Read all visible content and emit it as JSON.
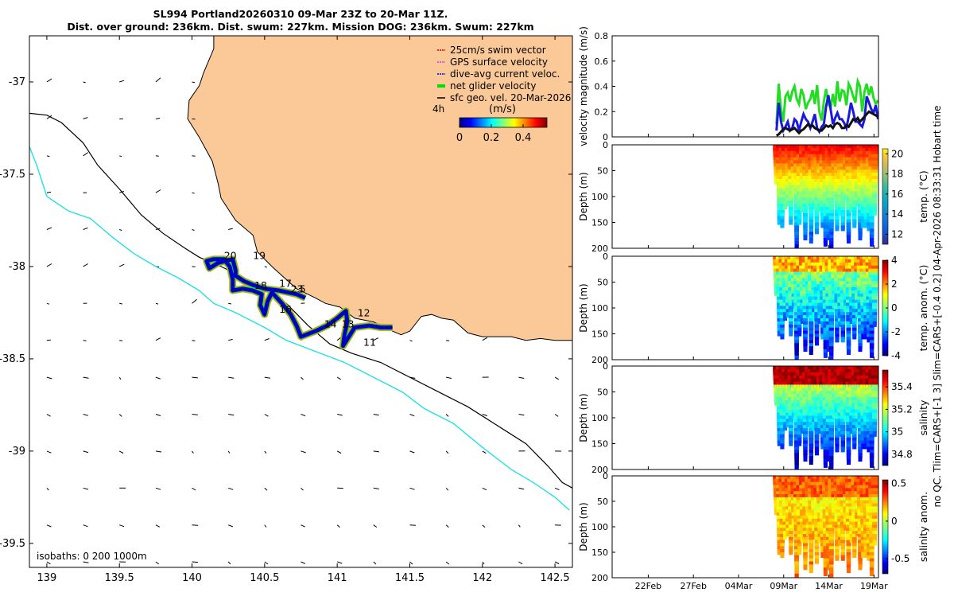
{
  "title": {
    "line1": "SL994 Portland20260310 09-Mar 23Z to 20-Mar 11Z.",
    "line2": "Dist. over ground: 236km. Dist. swum: 227km. Mission DOG: 236km. Swum: 227km"
  },
  "side_label": {
    "line1": "no QC. Tlim=CARS+[-1 3] Slim=CARS+[-0.4 0.2] 04-Apr-2026 08:33:31 Hobart time"
  },
  "colors": {
    "land": "#fbc998",
    "shelf_isobath": "#000000",
    "deep_isobath": "#22e0e6",
    "track_blue": "#0000dd",
    "track_orange": "#ff9a00",
    "track_green": "#22dd22",
    "track_yellow": "#e8e000"
  },
  "chart_data": [
    {
      "id": "map",
      "type": "scatter",
      "subtype": "map",
      "xlabel": "",
      "ylabel": "",
      "xlim": [
        138.88,
        142.62
      ],
      "ylim": [
        -39.63,
        -36.75
      ],
      "xticks": [
        139,
        139.5,
        140,
        140.5,
        141,
        141.5,
        142,
        142.5
      ],
      "xtick_labels": [
        "139",
        "139.5",
        "140",
        "140.5",
        "141",
        "141.5",
        "142",
        "142.5"
      ],
      "yticks": [
        -37,
        -37.5,
        -38,
        -38.5,
        -39,
        -39.5
      ],
      "ytick_labels": [
        "-37",
        "-37.5",
        "-38",
        "-38.5",
        "-39",
        "-39.5"
      ],
      "isobath_label": "isobaths: 0   200  1000m",
      "legend": [
        {
          "label": "25cm/s swim vector",
          "color": "#dd0000"
        },
        {
          "label": "GPS surface velocity",
          "color": "#cc44cc"
        },
        {
          "label": "dive-avg current veloc.",
          "color": "#0000ee"
        },
        {
          "label": "net glider velocity",
          "color": "#00dd00"
        },
        {
          "label": "sfc geo. vel. 20-Mar-2026",
          "color": "#000000"
        }
      ],
      "legend_position": "top-right",
      "colorbar": {
        "title": "(m/s)",
        "prefix": "4h",
        "tick_labels": [
          "0",
          "0.2",
          "0.4"
        ],
        "range": [
          0,
          0.55
        ]
      },
      "coastline": [
        [
          140.15,
          -36.75
        ],
        [
          140.15,
          -36.82
        ],
        [
          140.08,
          -36.95
        ],
        [
          140.05,
          -37.02
        ],
        [
          139.98,
          -37.1
        ],
        [
          139.97,
          -37.2
        ],
        [
          140.05,
          -37.3
        ],
        [
          140.14,
          -37.43
        ],
        [
          140.18,
          -37.55
        ],
        [
          140.2,
          -37.63
        ],
        [
          140.3,
          -37.75
        ],
        [
          140.42,
          -37.83
        ],
        [
          140.45,
          -37.92
        ],
        [
          140.55,
          -38.0
        ],
        [
          140.62,
          -38.05
        ],
        [
          140.72,
          -38.12
        ],
        [
          140.85,
          -38.17
        ],
        [
          140.92,
          -38.2
        ],
        [
          141.02,
          -38.22
        ],
        [
          141.12,
          -38.28
        ],
        [
          141.25,
          -38.3
        ],
        [
          141.38,
          -38.35
        ],
        [
          141.44,
          -38.37
        ],
        [
          141.5,
          -38.35
        ],
        [
          141.55,
          -38.3
        ],
        [
          141.58,
          -38.27
        ],
        [
          141.65,
          -38.26
        ],
        [
          141.72,
          -38.28
        ],
        [
          141.8,
          -38.29
        ],
        [
          141.9,
          -38.36
        ],
        [
          142.0,
          -38.38
        ],
        [
          142.1,
          -38.38
        ],
        [
          142.2,
          -38.38
        ],
        [
          142.3,
          -38.4
        ],
        [
          142.4,
          -38.39
        ],
        [
          142.5,
          -38.4
        ],
        [
          142.62,
          -38.4
        ]
      ],
      "shelf_isobath": [
        [
          138.88,
          -37.17
        ],
        [
          139.0,
          -37.18
        ],
        [
          139.1,
          -37.22
        ],
        [
          139.25,
          -37.33
        ],
        [
          139.35,
          -37.45
        ],
        [
          139.5,
          -37.58
        ],
        [
          139.65,
          -37.72
        ],
        [
          139.8,
          -37.82
        ],
        [
          139.95,
          -37.9
        ],
        [
          140.05,
          -37.95
        ],
        [
          140.2,
          -38.0
        ],
        [
          140.35,
          -38.06
        ],
        [
          140.5,
          -38.12
        ],
        [
          140.65,
          -38.2
        ],
        [
          140.8,
          -38.32
        ],
        [
          140.95,
          -38.42
        ],
        [
          141.1,
          -38.47
        ],
        [
          141.3,
          -38.52
        ],
        [
          141.5,
          -38.6
        ],
        [
          141.7,
          -38.68
        ],
        [
          141.9,
          -38.76
        ],
        [
          142.1,
          -38.86
        ],
        [
          142.3,
          -38.96
        ],
        [
          142.45,
          -39.08
        ],
        [
          142.55,
          -39.17
        ],
        [
          142.62,
          -39.2
        ]
      ],
      "deep_isobath": [
        [
          138.88,
          -37.35
        ],
        [
          138.93,
          -37.45
        ],
        [
          139.0,
          -37.62
        ],
        [
          139.15,
          -37.7
        ],
        [
          139.3,
          -37.74
        ],
        [
          139.45,
          -37.84
        ],
        [
          139.6,
          -37.93
        ],
        [
          139.75,
          -38.0
        ],
        [
          139.9,
          -38.06
        ],
        [
          140.05,
          -38.13
        ],
        [
          140.15,
          -38.2
        ],
        [
          140.3,
          -38.25
        ],
        [
          140.5,
          -38.33
        ],
        [
          140.65,
          -38.4
        ],
        [
          140.85,
          -38.46
        ],
        [
          141.05,
          -38.52
        ],
        [
          141.25,
          -38.6
        ],
        [
          141.45,
          -38.68
        ],
        [
          141.6,
          -38.77
        ],
        [
          141.8,
          -38.85
        ],
        [
          142.0,
          -38.98
        ],
        [
          142.2,
          -39.1
        ],
        [
          142.35,
          -39.17
        ],
        [
          142.5,
          -39.25
        ],
        [
          142.6,
          -39.32
        ]
      ],
      "track": [
        [
          141.38,
          -38.33
        ],
        [
          141.3,
          -38.33
        ],
        [
          141.22,
          -38.32
        ],
        [
          141.12,
          -38.33
        ],
        [
          141.08,
          -38.38
        ],
        [
          141.04,
          -38.43
        ],
        [
          141.05,
          -38.37
        ],
        [
          141.07,
          -38.3
        ],
        [
          141.06,
          -38.24
        ],
        [
          141.0,
          -38.28
        ],
        [
          140.93,
          -38.32
        ],
        [
          140.85,
          -38.35
        ],
        [
          140.75,
          -38.38
        ],
        [
          140.72,
          -38.32
        ],
        [
          140.68,
          -38.26
        ],
        [
          140.62,
          -38.2
        ],
        [
          140.55,
          -38.14
        ],
        [
          140.52,
          -38.19
        ],
        [
          140.5,
          -38.26
        ],
        [
          140.47,
          -38.21
        ],
        [
          140.48,
          -38.15
        ],
        [
          140.42,
          -38.13
        ],
        [
          140.35,
          -38.12
        ],
        [
          140.28,
          -38.13
        ],
        [
          140.28,
          -38.07
        ],
        [
          140.26,
          -38.0
        ],
        [
          140.22,
          -37.96
        ],
        [
          140.15,
          -37.96
        ],
        [
          140.1,
          -37.97
        ],
        [
          140.12,
          -38.01
        ],
        [
          140.18,
          -37.98
        ],
        [
          140.28,
          -37.96
        ],
        [
          140.3,
          -38.02
        ],
        [
          140.3,
          -38.05
        ],
        [
          140.36,
          -38.08
        ],
        [
          140.42,
          -38.1
        ],
        [
          140.5,
          -38.12
        ],
        [
          140.6,
          -38.13
        ],
        [
          140.66,
          -38.14
        ],
        [
          140.72,
          -38.15
        ],
        [
          140.78,
          -38.17
        ]
      ],
      "dive_labels": [
        {
          "text": "20",
          "lon": 140.22,
          "lat": -37.96
        },
        {
          "text": "19",
          "lon": 140.42,
          "lat": -37.96
        },
        {
          "text": "18",
          "lon": 140.43,
          "lat": -38.12
        },
        {
          "text": "17",
          "lon": 140.6,
          "lat": -38.11
        },
        {
          "text": "23",
          "lon": 140.68,
          "lat": -38.14
        },
        {
          "text": "5",
          "lon": 140.74,
          "lat": -38.14
        },
        {
          "text": "16",
          "lon": 140.6,
          "lat": -38.25
        },
        {
          "text": "14",
          "lon": 140.91,
          "lat": -38.33
        },
        {
          "text": "13",
          "lon": 141.03,
          "lat": -38.33
        },
        {
          "text": "12",
          "lon": 141.14,
          "lat": -38.27
        },
        {
          "text": "11",
          "lon": 141.18,
          "lat": -38.43
        }
      ],
      "vector_grid": {
        "lon_start": 139.0,
        "lon_step": 0.25,
        "lat_start": -37.0,
        "lat_step": 0.2
      }
    },
    {
      "id": "velocity",
      "type": "line",
      "ylabel": "velocity magnitude (m/s)",
      "xlim": [
        0,
        29.5
      ],
      "ylim": [
        0,
        0.8
      ],
      "yticks": [
        0,
        0.2,
        0.4,
        0.6,
        0.8
      ],
      "ytick_labels": [
        "0",
        "0.2",
        "0.4",
        "0.6",
        "0.8"
      ],
      "series": [
        {
          "name": "net glider velocity",
          "color": "#22dd22",
          "x": [
            18.2,
            18.45,
            18.7,
            18.95,
            19.2,
            19.45,
            19.7,
            19.95,
            20.2,
            20.45,
            20.7,
            20.95,
            21.2,
            21.45,
            21.7,
            21.95,
            22.2,
            22.45,
            22.7,
            22.95,
            23.2,
            23.45,
            23.7,
            23.95,
            24.2,
            24.45,
            24.7,
            24.95,
            25.2,
            25.45,
            25.7,
            25.95,
            26.2,
            26.45,
            26.7,
            26.95,
            27.2,
            27.45,
            27.7,
            27.95,
            28.2,
            28.45,
            28.7,
            28.95,
            29.2,
            29.45
          ],
          "y": [
            0.1,
            0.42,
            0.22,
            0.12,
            0.32,
            0.35,
            0.28,
            0.36,
            0.4,
            0.3,
            0.26,
            0.38,
            0.33,
            0.22,
            0.27,
            0.3,
            0.37,
            0.26,
            0.41,
            0.2,
            0.13,
            0.28,
            0.38,
            0.26,
            0.23,
            0.34,
            0.24,
            0.44,
            0.28,
            0.37,
            0.36,
            0.25,
            0.42,
            0.38,
            0.32,
            0.27,
            0.44,
            0.4,
            0.2,
            0.36,
            0.42,
            0.33,
            0.4,
            0.31,
            0.26,
            0.29
          ]
        },
        {
          "name": "dive-avg current veloc.",
          "color": "#1a1add",
          "x": [
            18.2,
            18.45,
            18.7,
            18.95,
            19.2,
            19.45,
            19.7,
            19.95,
            20.2,
            20.45,
            20.7,
            20.95,
            21.2,
            21.45,
            21.7,
            21.95,
            22.2,
            22.45,
            22.7,
            22.95,
            23.2,
            23.45,
            23.7,
            23.95,
            24.2,
            24.45,
            24.7,
            24.95,
            25.2,
            25.45,
            25.7,
            25.95,
            26.2,
            26.45,
            26.7,
            26.95,
            27.2,
            27.45,
            27.7,
            27.95,
            28.2,
            28.45,
            28.7,
            28.95,
            29.2,
            29.45
          ],
          "y": [
            0.05,
            0.27,
            0.12,
            0.05,
            0.08,
            0.12,
            0.05,
            0.07,
            0.14,
            0.12,
            0.05,
            0.12,
            0.18,
            0.14,
            0.12,
            0.07,
            0.12,
            0.18,
            0.07,
            0.04,
            0.08,
            0.1,
            0.24,
            0.33,
            0.22,
            0.1,
            0.15,
            0.19,
            0.14,
            0.14,
            0.11,
            0.07,
            0.16,
            0.27,
            0.2,
            0.12,
            0.12,
            0.1,
            0.08,
            0.14,
            0.32,
            0.27,
            0.22,
            0.19,
            0.25,
            0.14
          ]
        },
        {
          "name": "sfc geo. vel.",
          "color": "#111111",
          "x": [
            18.2,
            18.45,
            18.7,
            18.95,
            19.2,
            19.45,
            19.7,
            19.95,
            20.2,
            20.45,
            20.7,
            20.95,
            21.2,
            21.45,
            21.7,
            21.95,
            22.2,
            22.45,
            22.7,
            22.95,
            23.2,
            23.45,
            23.7,
            23.95,
            24.2,
            24.45,
            24.7,
            24.95,
            25.2,
            25.45,
            25.7,
            25.95,
            26.2,
            26.45,
            26.7,
            26.95,
            27.2,
            27.45,
            27.7,
            27.95,
            28.2,
            28.45,
            28.7,
            28.95,
            29.2,
            29.45
          ],
          "y": [
            0.01,
            0.02,
            0.04,
            0.06,
            0.07,
            0.06,
            0.05,
            0.06,
            0.07,
            0.05,
            0.03,
            0.05,
            0.06,
            0.08,
            0.1,
            0.08,
            0.09,
            0.07,
            0.06,
            0.05,
            0.05,
            0.07,
            0.09,
            0.08,
            0.09,
            0.07,
            0.1,
            0.11,
            0.1,
            0.07,
            0.07,
            0.09,
            0.08,
            0.11,
            0.14,
            0.13,
            0.15,
            0.12,
            0.14,
            0.16,
            0.18,
            0.2,
            0.19,
            0.18,
            0.17,
            0.16
          ]
        }
      ]
    },
    {
      "id": "temperature",
      "type": "heatmap",
      "ylabel": "Depth (m)",
      "ylim": [
        200,
        0
      ],
      "yticks": [
        0,
        50,
        100,
        150,
        200
      ],
      "ytick_labels": [
        "0",
        "50",
        "100",
        "150",
        "200"
      ],
      "colorbar_label": "temp. (°C)",
      "colorbar_range": [
        11,
        20.5
      ],
      "colorbar_ticks": [
        12,
        14,
        16,
        18,
        20
      ],
      "colorbar_tick_labels": [
        "12",
        "14",
        "16",
        "18",
        "20"
      ],
      "profile_max_depths": [
        70,
        145,
        155,
        115,
        110,
        145,
        90,
        200,
        145,
        125,
        175,
        110,
        180,
        115,
        165,
        120,
        155,
        190,
        175,
        200,
        95,
        160,
        130,
        160,
        100,
        185,
        120,
        155,
        110,
        175,
        150,
        150,
        160,
        190,
        130
      ],
      "profile_start": 18.2,
      "profile_step": 0.32
    },
    {
      "id": "temperature_anomaly",
      "type": "heatmap",
      "ylabel": "Depth (m)",
      "ylim": [
        200,
        0
      ],
      "yticks": [
        0,
        50,
        100,
        150,
        200
      ],
      "ytick_labels": [
        "0",
        "50",
        "100",
        "150",
        "200"
      ],
      "colorbar_label": "temp. anom. (°C)",
      "colorbar_range": [
        -4,
        4
      ],
      "colorbar_ticks": [
        -4,
        -2,
        0,
        2,
        4
      ],
      "colorbar_tick_labels": [
        "-4",
        "-2",
        "0",
        "2",
        "4"
      ]
    },
    {
      "id": "salinity",
      "type": "heatmap",
      "ylabel": "Depth (m)",
      "ylim": [
        200,
        0
      ],
      "yticks": [
        0,
        50,
        100,
        150,
        200
      ],
      "ytick_labels": [
        "0",
        "50",
        "100",
        "150",
        "200"
      ],
      "colorbar_label": "salinity",
      "colorbar_range": [
        34.7,
        35.55
      ],
      "colorbar_ticks": [
        34.8,
        35,
        35.2,
        35.4
      ],
      "colorbar_tick_labels": [
        "34.8",
        "35",
        "35.2",
        "35.4"
      ]
    },
    {
      "id": "salinity_anomaly",
      "type": "heatmap",
      "ylabel": "Depth (m)",
      "ylim": [
        200,
        0
      ],
      "yticks": [
        0,
        50,
        100,
        150,
        200
      ],
      "ytick_labels": [
        "0",
        "50",
        "100",
        "150",
        "200"
      ],
      "colorbar_label": "salinity anom.",
      "colorbar_range": [
        -0.7,
        0.55
      ],
      "colorbar_ticks": [
        -0.5,
        0,
        0.5
      ],
      "colorbar_tick_labels": [
        "-0.5",
        "0",
        "0.5"
      ],
      "xticks": [
        4,
        9,
        14,
        19,
        24,
        29
      ],
      "xtick_labels": [
        "22Feb",
        "27Feb",
        "04Mar",
        "09Mar",
        "14Mar",
        "19Mar"
      ]
    }
  ]
}
